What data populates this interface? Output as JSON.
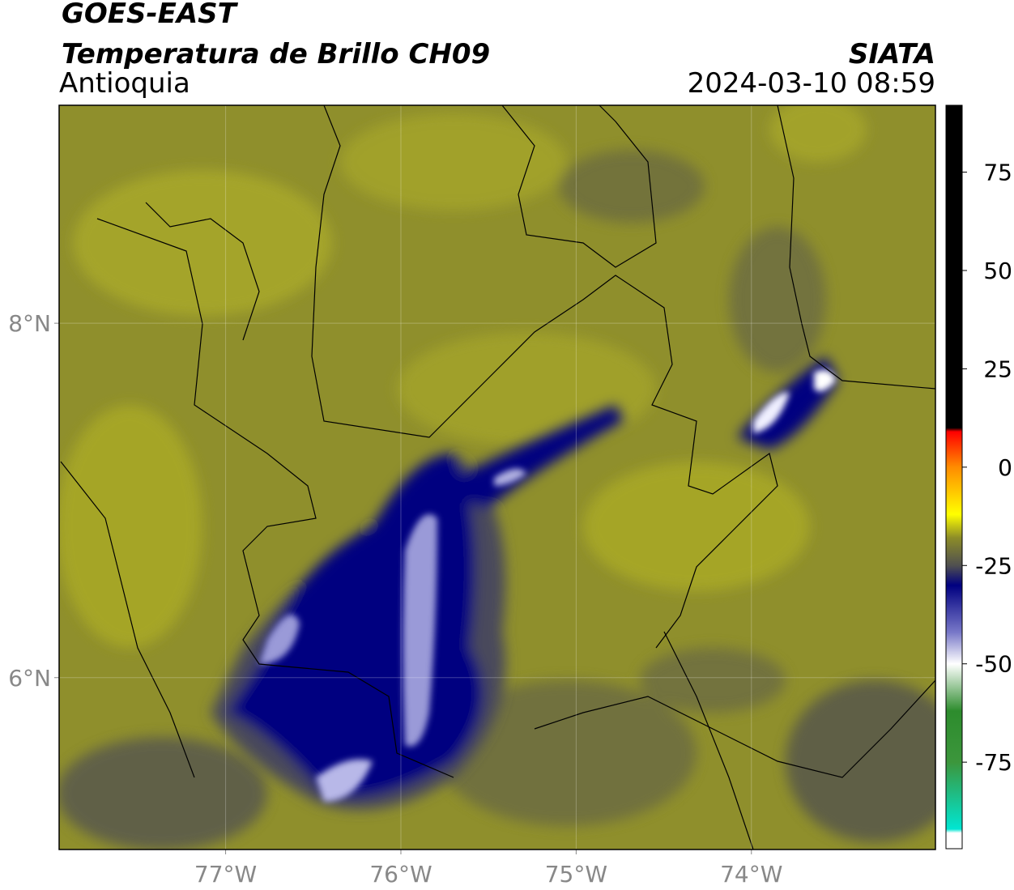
{
  "header": {
    "title": "GOES-EAST",
    "subtitle": "Temperatura de Brillo CH09",
    "region": "Antioquia",
    "source": "SIATA",
    "timestamp": "2024-03-10 08:59"
  },
  "map": {
    "lonlim": [
      -77.95,
      -72.95
    ],
    "latlim": [
      5.03,
      9.23
    ],
    "lat_ticks": [
      {
        "value": 8,
        "label": "8°N"
      },
      {
        "value": 6,
        "label": "6°N"
      }
    ],
    "lon_ticks": [
      {
        "value": -77,
        "label": "77°W"
      },
      {
        "value": -76,
        "label": "76°W"
      },
      {
        "value": -75,
        "label": "75°W"
      },
      {
        "value": -74,
        "label": "74°W"
      }
    ],
    "grid": true
  },
  "colorbar": {
    "lim": [
      -97,
      92
    ],
    "ticks": [
      75,
      50,
      25,
      0,
      -25,
      -50,
      -75
    ],
    "colormap": [
      {
        "value": 92,
        "color": "#000000"
      },
      {
        "value": 10,
        "color": "#000000"
      },
      {
        "value": 9,
        "color": "#ff0000"
      },
      {
        "value": 0,
        "color": "#ff8c00"
      },
      {
        "value": -12,
        "color": "#ffff00"
      },
      {
        "value": -18,
        "color": "#8c8c28"
      },
      {
        "value": -25,
        "color": "#505050"
      },
      {
        "value": -30,
        "color": "#000080"
      },
      {
        "value": -42,
        "color": "#7878c8"
      },
      {
        "value": -50,
        "color": "#ffffff"
      },
      {
        "value": -62,
        "color": "#2d8c2d"
      },
      {
        "value": -75,
        "color": "#3c963c"
      },
      {
        "value": -92,
        "color": "#00e6d2"
      },
      {
        "value": -93,
        "color": "#ffffff"
      },
      {
        "value": -97,
        "color": "#ffffff"
      }
    ]
  }
}
